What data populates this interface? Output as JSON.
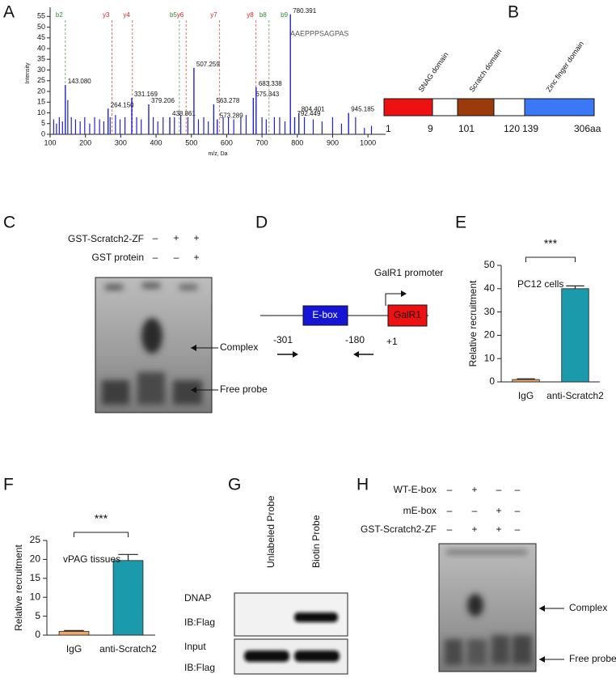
{
  "panel_labels": [
    "A",
    "B",
    "C",
    "D",
    "E",
    "F",
    "G",
    "H"
  ],
  "chart_data": [
    {
      "type": "spectrum",
      "xlabel": "m/z, Da",
      "ylabel": "Intensity",
      "sequence": "AAEPPPSAGPAS",
      "xlim": [
        100,
        1050
      ],
      "xticks": [
        100,
        200,
        300,
        400,
        500,
        600,
        700,
        800,
        900,
        1000
      ],
      "ylim": [
        0,
        57
      ],
      "yticks": [
        0,
        5,
        10,
        15,
        20,
        25,
        30,
        35,
        40,
        45,
        50,
        55
      ],
      "color": "#2222cc",
      "peaks": {
        "x": [
          143.08,
          264.15,
          331.169,
          379.206,
          438.861,
          507.259,
          563.278,
          573.289,
          675.343,
          683.338,
          780.391,
          792.449,
          804.401,
          945.185
        ],
        "values": [
          23,
          12,
          17,
          14,
          8,
          31,
          14,
          7,
          17,
          22,
          56,
          8,
          10,
          10
        ],
        "labels": [
          "143.080",
          "264.150",
          "331.169",
          "379.206",
          "438.861",
          "507.259",
          "563.278",
          "573.289",
          "675.343",
          "683.338",
          "780.391",
          "792.449",
          "804.401",
          "945.185"
        ]
      },
      "background": {
        "x": [
          110,
          118,
          126,
          135,
          150,
          160,
          172,
          185,
          198,
          212,
          226,
          240,
          252,
          270,
          285,
          298,
          312,
          345,
          358,
          392,
          405,
          420,
          452,
          470,
          490,
          520,
          535,
          548,
          590,
          605,
          620,
          640,
          655,
          700,
          712,
          735,
          750,
          765,
          820,
          845,
          870,
          900,
          925,
          965,
          990,
          1010
        ],
        "values": [
          7,
          5,
          8,
          6,
          16,
          8,
          7,
          6,
          8,
          5,
          8,
          7,
          6,
          8,
          9,
          7,
          8,
          8,
          7,
          8,
          6,
          8,
          8,
          9,
          8,
          7,
          8,
          6,
          8,
          8,
          7,
          8,
          9,
          8,
          7,
          8,
          8,
          6,
          8,
          7,
          6,
          8,
          5,
          8,
          3,
          4
        ]
      },
      "ions": [
        {
          "label": "b2",
          "x": 143,
          "color": "#2e8b2e"
        },
        {
          "label": "y3",
          "x": 275,
          "color": "#d22"
        },
        {
          "label": "y4",
          "x": 333,
          "color": "#d22"
        },
        {
          "label": "b5",
          "x": 466,
          "color": "#2e8b2e"
        },
        {
          "label": "y6",
          "x": 485,
          "color": "#d22"
        },
        {
          "label": "y7",
          "x": 580,
          "color": "#d22"
        },
        {
          "label": "y8",
          "x": 683,
          "color": "#d22"
        },
        {
          "label": "b8",
          "x": 720,
          "color": "#2e8b2e"
        },
        {
          "label": "b9",
          "x": 780,
          "color": "#2e8b2e"
        }
      ]
    },
    {
      "type": "bar",
      "categories": [
        "IgG",
        "anti-Scratch2"
      ],
      "values": [
        1,
        40
      ],
      "errors": [
        0.3,
        1.2
      ],
      "colors": [
        "#f0a868",
        "#1a9aaa"
      ],
      "ylabel": "Relative recruitment",
      "annotation": "PC12 cells",
      "significance": "***",
      "ylim": [
        0,
        50
      ],
      "yticks": [
        0,
        10,
        20,
        30,
        40,
        50
      ]
    },
    {
      "type": "bar",
      "categories": [
        "IgG",
        "anti-Scratch2"
      ],
      "values": [
        1,
        19.7
      ],
      "errors": [
        0.2,
        1.6
      ],
      "colors": [
        "#f0a868",
        "#1a9aaa"
      ],
      "ylabel": "Relative recruitment",
      "annotation": "vPAG tissues",
      "significance": "***",
      "ylim": [
        0,
        25
      ],
      "yticks": [
        0,
        5,
        10,
        15,
        20,
        25
      ]
    }
  ],
  "panel_b": {
    "domains": [
      "SNAG domain",
      "Scratch domain",
      "Zinc finger domain"
    ],
    "positions": [
      "1",
      "9",
      "101",
      "120",
      "139",
      "306aa"
    ]
  },
  "panel_c": {
    "rows": [
      {
        "label": "GST-Scratch2-ZF",
        "signs": [
          "–",
          "+",
          "+"
        ]
      },
      {
        "label": "GST protein",
        "signs": [
          "–",
          "–",
          "+"
        ]
      }
    ],
    "arrows": [
      "Complex",
      "Free probe"
    ]
  },
  "panel_d": {
    "promoter": "GalR1 promoter",
    "ebox": "E-box",
    "gene": "GalR1",
    "positions": [
      "-301",
      "-180",
      "+1"
    ]
  },
  "panel_g": {
    "lanes": [
      "Unlabeled Probe",
      "Biotin Probe"
    ],
    "rows": [
      "DNAP",
      "IB:Flag",
      "Input",
      "IB:Flag"
    ]
  },
  "panel_h": {
    "rows": [
      {
        "label": "WT-E-box",
        "signs": [
          "–",
          "+",
          "–",
          "–"
        ]
      },
      {
        "label": "mE-box",
        "signs": [
          "–",
          "–",
          "+",
          "–"
        ]
      },
      {
        "label": "GST-Scratch2-ZF",
        "signs": [
          "–",
          "+",
          "+",
          "–"
        ]
      }
    ],
    "arrows": [
      "Complex",
      "Free probe"
    ]
  }
}
